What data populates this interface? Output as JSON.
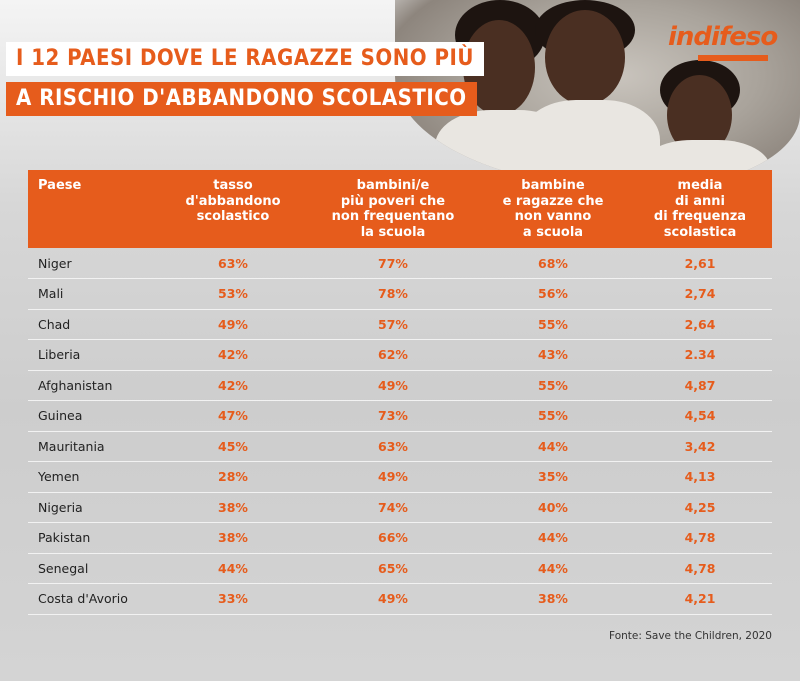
{
  "header": {
    "title_line1": "I 12 PAESI DOVE LE RAGAZZE SONO PIÙ",
    "title_line2": "A RISCHIO D'ABBANDONO SCOLASTICO",
    "logo_text": "indifeso"
  },
  "colors": {
    "accent": "#e65c1c",
    "background": "#d3d3d3",
    "text": "#222222"
  },
  "chart_data": {
    "type": "table",
    "columns": [
      "Paese",
      "tasso\nd'abbandono\nscolastico",
      "bambini/e\npiù poveri che\nnon frequentano\nla scuola",
      "bambine\ne ragazze che\nnon vanno\na scuola",
      "media\ndi anni\ndi frequenza\nscolastica"
    ],
    "rows": [
      [
        "Niger",
        "63%",
        "77%",
        "68%",
        "2,61"
      ],
      [
        "Mali",
        "53%",
        "78%",
        "56%",
        "2,74"
      ],
      [
        "Chad",
        "49%",
        "57%",
        "55%",
        "2,64"
      ],
      [
        "Liberia",
        "42%",
        "62%",
        "43%",
        "2.34"
      ],
      [
        "Afghanistan",
        "42%",
        "49%",
        "55%",
        "4,87"
      ],
      [
        "Guinea",
        "47%",
        "73%",
        "55%",
        "4,54"
      ],
      [
        "Mauritania",
        "45%",
        "63%",
        "44%",
        "3,42"
      ],
      [
        "Yemen",
        "28%",
        "49%",
        "35%",
        "4,13"
      ],
      [
        "Nigeria",
        "38%",
        "74%",
        "40%",
        "4,25"
      ],
      [
        "Pakistan",
        "38%",
        "66%",
        "44%",
        "4,78"
      ],
      [
        "Senegal",
        "44%",
        "65%",
        "44%",
        "4,78"
      ],
      [
        "Costa d'Avorio",
        "33%",
        "49%",
        "38%",
        "4,21"
      ]
    ],
    "source": "Fonte: Save the Children, 2020"
  }
}
